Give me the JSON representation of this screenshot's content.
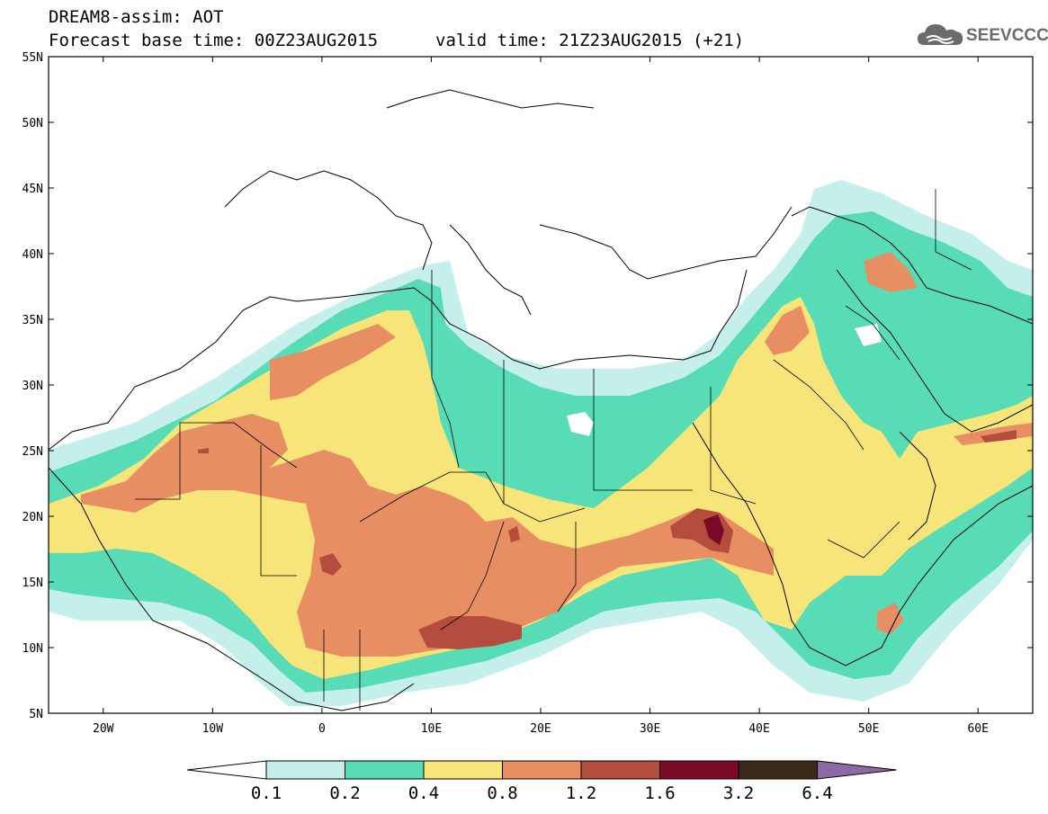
{
  "header": {
    "title": "DREAM8-assim: AOT",
    "base_time": "Forecast base time: 00Z23AUG2015",
    "valid_time": "valid time: 21Z23AUG2015 (+21)"
  },
  "logo": {
    "text": "SEEVCCC"
  },
  "map": {
    "lat_labels": [
      "55N",
      "50N",
      "45N",
      "40N",
      "35N",
      "30N",
      "25N",
      "20N",
      "15N",
      "10N",
      "5N"
    ],
    "lon_labels": [
      "20W",
      "10W",
      "0",
      "10E",
      "20E",
      "30E",
      "40E",
      "50E",
      "60E"
    ],
    "lon_range": [
      -25,
      65
    ],
    "lat_range": [
      5,
      55
    ]
  },
  "legend": {
    "labels": [
      "0.1",
      "0.2",
      "0.4",
      "0.8",
      "1.2",
      "1.6",
      "3.2",
      "6.4"
    ],
    "colors": [
      "#ffffff",
      "#c4efea",
      "#57dcb5",
      "#f7e57a",
      "#e88e63",
      "#b54d3e",
      "#7a0a27",
      "#3c2a18",
      "#8d6aa6"
    ]
  }
}
